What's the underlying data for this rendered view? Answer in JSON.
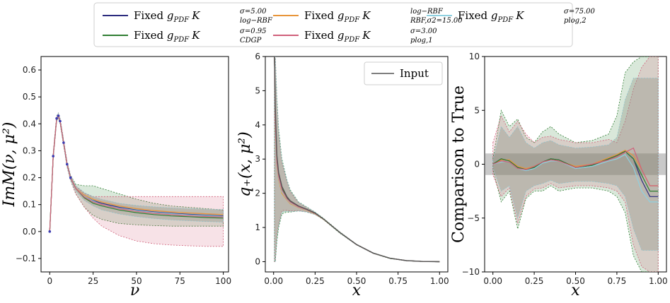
{
  "legend": {
    "entries": [
      {
        "label": "Fixed",
        "g": "g",
        "gsub": "PDF",
        "k": "K",
        "ksup": "σ=5.00",
        "ksub": "log−RBF",
        "color": "#2b2b7e"
      },
      {
        "label": "Fixed",
        "g": "g",
        "gsub": "PDF",
        "k": "K",
        "ksup": "log−RBF",
        "ksub": "RBF,σ2=15.00",
        "color": "#e8953a"
      },
      {
        "label": "Fixed",
        "g": "g",
        "gsub": "PDF",
        "k": "K",
        "ksup": "σ=75.00",
        "ksub": "plog,2",
        "color": "#8fd0e0"
      },
      {
        "label": "Fixed",
        "g": "g",
        "gsub": "PDF",
        "k": "K",
        "ksup": "σ=0.95",
        "ksub": "CDGP",
        "color": "#2f7d32"
      },
      {
        "label": "Fixed",
        "g": "g",
        "gsub": "PDF",
        "k": "K",
        "ksup": "σ=3.00",
        "ksub": "plog,1",
        "color": "#d0607a"
      }
    ]
  },
  "chart_data": [
    {
      "type": "line",
      "title": "",
      "xlabel": "ν",
      "ylabel": "ImM(ν, μ²)",
      "xlim": [
        -5,
        103
      ],
      "ylim": [
        -0.15,
        0.65
      ],
      "xticks": [
        "0",
        "25",
        "50",
        "75",
        "100"
      ],
      "xtick_values": [
        0,
        25,
        50,
        75,
        100
      ],
      "yticks": [
        "−0.1",
        "0.0",
        "0.1",
        "0.2",
        "0.3",
        "0.4",
        "0.5",
        "0.6"
      ],
      "ytick_values": [
        -0.1,
        0,
        0.1,
        0.2,
        0.3,
        0.4,
        0.5,
        0.6
      ],
      "x": [
        0,
        2,
        4,
        5,
        6,
        8,
        10,
        12,
        15,
        20,
        25,
        30,
        40,
        50,
        60,
        70,
        80,
        90,
        100
      ],
      "series": [
        {
          "name": "log-RBF",
          "color": "#2b2b7e",
          "values": [
            0,
            0.28,
            0.42,
            0.43,
            0.41,
            0.33,
            0.25,
            0.2,
            0.16,
            0.13,
            0.115,
            0.105,
            0.09,
            0.08,
            0.073,
            0.068,
            0.064,
            0.061,
            0.058
          ]
        },
        {
          "name": "RBF",
          "color": "#e8953a",
          "values": [
            0,
            0.28,
            0.42,
            0.43,
            0.41,
            0.33,
            0.25,
            0.2,
            0.16,
            0.135,
            0.12,
            0.11,
            0.095,
            0.085,
            0.078,
            0.073,
            0.069,
            0.066,
            0.063
          ]
        },
        {
          "name": "plog,2",
          "color": "#8fd0e0",
          "values": [
            0,
            0.28,
            0.42,
            0.43,
            0.41,
            0.33,
            0.25,
            0.2,
            0.16,
            0.13,
            0.113,
            0.1,
            0.087,
            0.078,
            0.071,
            0.066,
            0.062,
            0.059,
            0.056
          ]
        },
        {
          "name": "CDGP",
          "color": "#2f7d32",
          "values": [
            0,
            0.28,
            0.42,
            0.43,
            0.41,
            0.33,
            0.25,
            0.2,
            0.16,
            0.125,
            0.105,
            0.095,
            0.08,
            0.07,
            0.063,
            0.058,
            0.055,
            0.052,
            0.05
          ]
        },
        {
          "name": "plog,1",
          "color": "#d0607a",
          "values": [
            0,
            0.28,
            0.42,
            0.43,
            0.41,
            0.33,
            0.25,
            0.2,
            0.16,
            0.128,
            0.11,
            0.1,
            0.085,
            0.075,
            0.068,
            0.063,
            0.059,
            0.056,
            0.054
          ]
        }
      ],
      "bands": [
        {
          "name": "CDGP",
          "color": "#2f7d32",
          "upper": [
            0,
            0.29,
            0.43,
            0.44,
            0.42,
            0.34,
            0.26,
            0.21,
            0.175,
            0.17,
            0.17,
            0.16,
            0.14,
            0.12,
            0.105,
            0.095,
            0.09,
            0.085,
            0.08
          ],
          "lower": [
            0,
            0.27,
            0.41,
            0.42,
            0.4,
            0.32,
            0.24,
            0.19,
            0.14,
            0.09,
            0.06,
            0.045,
            0.03,
            0.025,
            0.022,
            0.02,
            0.02,
            0.02,
            0.02
          ]
        },
        {
          "name": "plog,1",
          "color": "#d0607a",
          "upper": [
            0,
            0.29,
            0.43,
            0.44,
            0.42,
            0.34,
            0.26,
            0.21,
            0.17,
            0.14,
            0.13,
            0.13,
            0.13,
            0.13,
            0.13,
            0.13,
            0.13,
            0.13,
            0.13
          ],
          "lower": [
            0,
            0.27,
            0.41,
            0.42,
            0.4,
            0.32,
            0.24,
            0.19,
            0.14,
            0.09,
            0.05,
            0.02,
            -0.015,
            -0.035,
            -0.045,
            -0.05,
            -0.053,
            -0.055,
            -0.055
          ]
        },
        {
          "name": "plog,2",
          "color": "#8fd0e0",
          "upper": [
            0,
            0.29,
            0.43,
            0.44,
            0.42,
            0.34,
            0.26,
            0.21,
            0.17,
            0.145,
            0.13,
            0.12,
            0.105,
            0.097,
            0.092,
            0.088,
            0.085,
            0.083,
            0.082
          ],
          "lower": [
            0,
            0.27,
            0.41,
            0.42,
            0.4,
            0.32,
            0.24,
            0.19,
            0.15,
            0.115,
            0.095,
            0.08,
            0.065,
            0.055,
            0.048,
            0.043,
            0.04,
            0.037,
            0.035
          ]
        }
      ]
    },
    {
      "type": "line",
      "title": "",
      "xlabel": "x",
      "ylabel": "q₊(x, μ²)",
      "xlim": [
        -0.05,
        1.05
      ],
      "ylim": [
        -0.3,
        6.0
      ],
      "xticks": [
        "0.00",
        "0.25",
        "0.50",
        "0.75",
        "1.00"
      ],
      "xtick_values": [
        0,
        0.25,
        0.5,
        0.75,
        1.0
      ],
      "yticks": [
        "0",
        "1",
        "2",
        "3",
        "4",
        "5",
        "6"
      ],
      "ytick_values": [
        0,
        1,
        2,
        3,
        4,
        5,
        6
      ],
      "legend_label": "Input",
      "x": [
        0.005,
        0.01,
        0.02,
        0.03,
        0.05,
        0.08,
        0.1,
        0.15,
        0.2,
        0.25,
        0.3,
        0.4,
        0.5,
        0.6,
        0.7,
        0.8,
        0.9,
        1.0
      ],
      "series": [
        {
          "name": "log-RBF",
          "color": "#2b2b7e",
          "values": [
            6.0,
            4.2,
            2.9,
            2.5,
            2.1,
            1.85,
            1.75,
            1.6,
            1.52,
            1.42,
            1.25,
            0.85,
            0.5,
            0.25,
            0.1,
            0.03,
            0.005,
            0
          ]
        },
        {
          "name": "RBF",
          "color": "#e8953a",
          "values": [
            6.0,
            4.0,
            2.8,
            2.4,
            2.0,
            1.8,
            1.7,
            1.58,
            1.5,
            1.4,
            1.24,
            0.85,
            0.5,
            0.25,
            0.1,
            0.03,
            0.005,
            0
          ]
        },
        {
          "name": "plog,2",
          "color": "#8fd0e0",
          "values": [
            6.0,
            4.1,
            2.85,
            2.45,
            2.05,
            1.82,
            1.72,
            1.59,
            1.51,
            1.41,
            1.25,
            0.85,
            0.5,
            0.25,
            0.1,
            0.03,
            0.005,
            0
          ]
        },
        {
          "name": "CDGP",
          "color": "#2f7d32",
          "values": [
            6.0,
            4.3,
            3.0,
            2.55,
            2.15,
            1.88,
            1.77,
            1.62,
            1.53,
            1.42,
            1.25,
            0.85,
            0.5,
            0.25,
            0.1,
            0.03,
            0.005,
            0
          ]
        },
        {
          "name": "plog,1",
          "color": "#d0607a",
          "values": [
            6.0,
            4.1,
            2.9,
            2.5,
            2.1,
            1.84,
            1.74,
            1.6,
            1.52,
            1.41,
            1.25,
            0.85,
            0.5,
            0.25,
            0.1,
            0.03,
            0.005,
            0
          ]
        },
        {
          "name": "Input",
          "color": "#555555",
          "values": [
            6.0,
            4.5,
            3.1,
            2.6,
            2.2,
            1.9,
            1.78,
            1.63,
            1.53,
            1.42,
            1.25,
            0.85,
            0.5,
            0.25,
            0.1,
            0.03,
            0.005,
            0
          ]
        }
      ],
      "bands": [
        {
          "name": "CDGP",
          "color": "#2f7d32",
          "upper": [
            6.0,
            6.0,
            4.8,
            3.9,
            3.0,
            2.4,
            2.1,
            1.75,
            1.6,
            1.45,
            1.27,
            0.87,
            0.51,
            0.26,
            0.11,
            0.03,
            0.005,
            0
          ],
          "lower": [
            0,
            0,
            0.6,
            1.0,
            1.4,
            1.45,
            1.45,
            1.48,
            1.45,
            1.38,
            1.23,
            0.83,
            0.49,
            0.24,
            0.09,
            0.03,
            0.005,
            0
          ]
        },
        {
          "name": "plog,1",
          "color": "#d0607a",
          "upper": [
            6.0,
            6.0,
            4.6,
            3.7,
            2.9,
            2.35,
            2.05,
            1.72,
            1.58,
            1.44,
            1.26,
            0.86,
            0.51,
            0.26,
            0.1,
            0.03,
            0.005,
            0
          ],
          "lower": [
            0,
            0,
            0.8,
            1.1,
            1.5,
            1.5,
            1.48,
            1.49,
            1.46,
            1.38,
            1.24,
            0.84,
            0.49,
            0.24,
            0.1,
            0.03,
            0.005,
            0
          ]
        },
        {
          "name": "plog,2",
          "color": "#8fd0e0",
          "upper": [
            6.0,
            6.0,
            4.7,
            3.8,
            2.95,
            2.38,
            2.08,
            1.74,
            1.59,
            1.45,
            1.26,
            0.86,
            0.51,
            0.26,
            0.1,
            0.03,
            0.005,
            0
          ],
          "lower": [
            0,
            0,
            0.7,
            1.05,
            1.45,
            1.47,
            1.46,
            1.48,
            1.45,
            1.38,
            1.24,
            0.84,
            0.49,
            0.24,
            0.1,
            0.03,
            0.005,
            0
          ]
        }
      ]
    },
    {
      "type": "line",
      "title": "",
      "xlabel": "x",
      "ylabel": "Comparison to True",
      "xlim": [
        -0.05,
        1.05
      ],
      "ylim": [
        -10,
        10
      ],
      "xticks": [
        "0.00",
        "0.25",
        "0.50",
        "0.75",
        "1.00"
      ],
      "xtick_values": [
        0,
        0.25,
        0.5,
        0.75,
        1.0
      ],
      "yticks": [
        "−10",
        "−5",
        "0",
        "5",
        "10"
      ],
      "ytick_values": [
        -10,
        -5,
        0,
        5,
        10
      ],
      "x": [
        0.0,
        0.05,
        0.1,
        0.15,
        0.2,
        0.25,
        0.3,
        0.35,
        0.4,
        0.5,
        0.6,
        0.7,
        0.75,
        0.8,
        0.85,
        0.9,
        0.95,
        1.0
      ],
      "series": [
        {
          "name": "log-RBF",
          "color": "#2b2b7e",
          "values": [
            0,
            0.5,
            0.3,
            -0.3,
            -0.5,
            -0.3,
            0.2,
            0.5,
            0.4,
            -0.3,
            -0.1,
            0.5,
            0.8,
            1.2,
            0.5,
            -1.5,
            -3.0,
            -3.0
          ]
        },
        {
          "name": "RBF",
          "color": "#e8953a",
          "values": [
            0,
            0.4,
            0.4,
            -0.2,
            -0.4,
            -0.2,
            0.2,
            0.4,
            0.3,
            -0.2,
            0.0,
            0.6,
            0.9,
            1.3,
            0.8,
            -0.5,
            -2.0,
            -2.0
          ]
        },
        {
          "name": "plog,2",
          "color": "#8fd0e0",
          "values": [
            0,
            0.2,
            0.3,
            -0.4,
            -0.6,
            -0.4,
            0.1,
            0.3,
            0.3,
            -0.4,
            -0.2,
            0.3,
            0.5,
            0.9,
            -0.3,
            -2.5,
            -3.5,
            -3.5
          ]
        },
        {
          "name": "CDGP",
          "color": "#2f7d32",
          "values": [
            0,
            0.5,
            0.3,
            -0.3,
            -0.5,
            -0.3,
            0.2,
            0.5,
            0.4,
            -0.3,
            -0.1,
            0.5,
            0.8,
            1.2,
            0.5,
            -1.0,
            -2.5,
            -2.5
          ]
        },
        {
          "name": "plog,1",
          "color": "#d0607a",
          "values": [
            0,
            0.3,
            0.2,
            -0.4,
            -0.5,
            -0.2,
            0.2,
            0.4,
            0.3,
            -0.3,
            0.0,
            0.4,
            0.7,
            1.1,
            1.5,
            -0.5,
            -2.0,
            -2.0
          ]
        }
      ],
      "bands": [
        {
          "name": "CDGP",
          "color": "#2f7d32",
          "upper": [
            0.5,
            5.0,
            3.5,
            4.2,
            2.5,
            2.0,
            3.0,
            3.5,
            2.8,
            2.0,
            2.2,
            2.8,
            4.5,
            8.5,
            9.5,
            10,
            10,
            10
          ],
          "lower": [
            -0.5,
            -3.5,
            -2.5,
            -6.0,
            -3.2,
            -2.5,
            -2.5,
            -2.0,
            -2.5,
            -2.2,
            -2.2,
            -2.5,
            -3.0,
            -4.5,
            -8.5,
            -10,
            -10,
            -10
          ]
        },
        {
          "name": "plog,1",
          "color": "#d0607a",
          "upper": [
            2.0,
            4.5,
            3.0,
            4.0,
            2.8,
            2.0,
            2.5,
            2.6,
            2.3,
            2.0,
            2.0,
            2.3,
            2.0,
            4.0,
            7.0,
            9.0,
            10,
            10
          ],
          "lower": [
            -1.0,
            -3.0,
            -2.2,
            -5.5,
            -3.0,
            -2.3,
            -2.2,
            -1.8,
            -2.2,
            -2.0,
            -2.0,
            -2.2,
            -2.5,
            -3.5,
            -7.5,
            -9.5,
            -10,
            -10
          ]
        },
        {
          "name": "plog,2",
          "color": "#8fd0e0",
          "upper": [
            0.3,
            3.5,
            2.5,
            3.5,
            2.0,
            1.5,
            2.0,
            2.2,
            1.8,
            1.5,
            1.6,
            1.8,
            2.5,
            6.0,
            8.0,
            8.0,
            8.0,
            8.0
          ],
          "lower": [
            -0.3,
            -2.5,
            -2.0,
            -5.0,
            -2.5,
            -2.0,
            -1.8,
            -1.5,
            -1.8,
            -1.6,
            -1.6,
            -1.8,
            -2.0,
            -3.0,
            -6.0,
            -8.0,
            -8.0,
            -8.0
          ]
        }
      ],
      "gray_band": [
        -1,
        1
      ]
    }
  ]
}
